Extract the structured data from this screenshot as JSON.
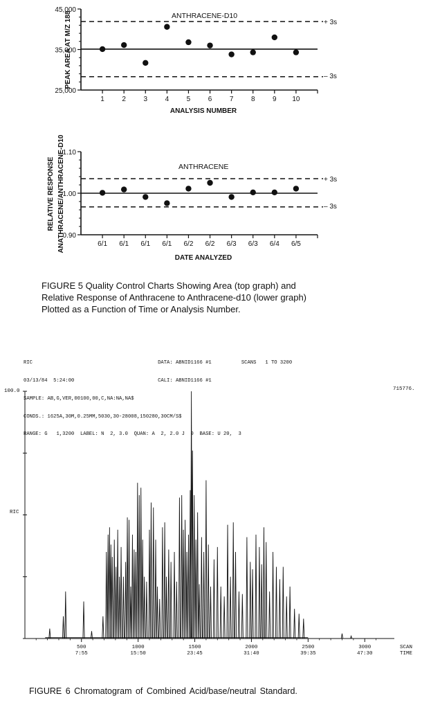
{
  "chart_data": [
    {
      "type": "scatter",
      "title": "ANTHRACENE-D10",
      "xlabel": "ANALYSIS NUMBER",
      "ylabel": "PEAK AREA AT M/Z 188",
      "ylim": [
        25000,
        45000
      ],
      "yticks": [
        "25,000",
        "35,000",
        "45,000"
      ],
      "x": [
        1,
        2,
        3,
        4,
        5,
        6,
        7,
        8,
        9,
        10
      ],
      "xticks": [
        "1",
        "2",
        "3",
        "4",
        "5",
        "6",
        "7",
        "8",
        "9",
        "10"
      ],
      "y": [
        35100,
        36100,
        31700,
        40600,
        36800,
        36000,
        33800,
        34300,
        38000,
        34300
      ],
      "center_line": 35100,
      "upper_limit": 41900,
      "lower_limit": 28300,
      "upper_label": "+ 3s",
      "lower_label": "– 3s"
    },
    {
      "type": "scatter",
      "title": "ANTHRACENE",
      "xlabel": "DATE ANALYZED",
      "ylabel_line1": "RELATIVE RESPONSE",
      "ylabel_line2": "ANATHRACENE/ANTHRACENE-D10",
      "ylim": [
        0.9,
        1.1
      ],
      "yticks": [
        "0.90",
        "1.00",
        "1.10"
      ],
      "categories": [
        "6/1",
        "6/1",
        "6/1",
        "6/1",
        "6/2",
        "6/2",
        "6/3",
        "6/3",
        "6/4",
        "6/5"
      ],
      "y": [
        1.001,
        1.009,
        0.991,
        0.976,
        1.011,
        1.025,
        0.991,
        1.002,
        1.002,
        1.011
      ],
      "center_line": 1.0,
      "upper_limit": 1.035,
      "lower_limit": 0.967,
      "upper_label": "+ 3s",
      "lower_label": "– 3s"
    },
    {
      "type": "line",
      "title": "RIC",
      "ylabel": "RIC",
      "ytop_label": "100.0",
      "max_label": "715776.",
      "xlim": [
        1,
        3200
      ],
      "xticks_scan": [
        "500",
        "1000",
        "1500",
        "2000",
        "2500",
        "3000"
      ],
      "xticks_time": [
        "7:55",
        "15:50",
        "23:45",
        "31:40",
        "39:35",
        "47:30"
      ],
      "xaxis_label_1": "SCAN",
      "xaxis_label_2": "TIME",
      "peaks": [
        [
          220,
          4
        ],
        [
          340,
          9
        ],
        [
          360,
          19
        ],
        [
          520,
          15
        ],
        [
          590,
          3
        ],
        [
          690,
          9
        ],
        [
          720,
          35
        ],
        [
          735,
          42
        ],
        [
          748,
          45
        ],
        [
          760,
          38
        ],
        [
          772,
          33
        ],
        [
          790,
          40
        ],
        [
          805,
          29
        ],
        [
          820,
          44
        ],
        [
          835,
          25
        ],
        [
          850,
          37
        ],
        [
          870,
          25
        ],
        [
          890,
          31
        ],
        [
          905,
          49
        ],
        [
          920,
          48
        ],
        [
          935,
          21
        ],
        [
          950,
          42
        ],
        [
          965,
          36
        ],
        [
          980,
          35
        ],
        [
          995,
          63
        ],
        [
          1010,
          58
        ],
        [
          1025,
          61
        ],
        [
          1040,
          40
        ],
        [
          1055,
          25
        ],
        [
          1075,
          23
        ],
        [
          1100,
          44
        ],
        [
          1115,
          55
        ],
        [
          1135,
          53
        ],
        [
          1155,
          40
        ],
        [
          1170,
          21
        ],
        [
          1190,
          16
        ],
        [
          1215,
          45
        ],
        [
          1235,
          47
        ],
        [
          1250,
          25
        ],
        [
          1270,
          36
        ],
        [
          1290,
          31
        ],
        [
          1320,
          35
        ],
        [
          1340,
          23
        ],
        [
          1365,
          57
        ],
        [
          1385,
          58
        ],
        [
          1400,
          44
        ],
        [
          1415,
          48
        ],
        [
          1430,
          35
        ],
        [
          1445,
          42
        ],
        [
          1460,
          60
        ],
        [
          1470,
          100
        ],
        [
          1480,
          76
        ],
        [
          1495,
          58
        ],
        [
          1510,
          40
        ],
        [
          1525,
          51
        ],
        [
          1540,
          22
        ],
        [
          1560,
          41
        ],
        [
          1580,
          35
        ],
        [
          1600,
          64
        ],
        [
          1620,
          38
        ],
        [
          1640,
          21
        ],
        [
          1670,
          32
        ],
        [
          1700,
          37
        ],
        [
          1730,
          21
        ],
        [
          1760,
          17
        ],
        [
          1790,
          46
        ],
        [
          1815,
          25
        ],
        [
          1840,
          47
        ],
        [
          1860,
          35
        ],
        [
          1890,
          19
        ],
        [
          1920,
          18
        ],
        [
          1960,
          41
        ],
        [
          1990,
          31
        ],
        [
          2010,
          28
        ],
        [
          2040,
          42
        ],
        [
          2070,
          37
        ],
        [
          2090,
          30
        ],
        [
          2110,
          45
        ],
        [
          2130,
          39
        ],
        [
          2160,
          19
        ],
        [
          2190,
          35
        ],
        [
          2220,
          29
        ],
        [
          2250,
          24
        ],
        [
          2280,
          29
        ],
        [
          2310,
          17
        ],
        [
          2340,
          21
        ],
        [
          2380,
          12
        ],
        [
          2420,
          10
        ],
        [
          2460,
          8
        ],
        [
          2800,
          2
        ],
        [
          2880,
          1
        ]
      ]
    }
  ],
  "figure5": {
    "caption_lines": [
      "FIGURE 5   Quality Control Charts Showing Area (top graph) and",
      "Relative Response of Anthracene to Anthracene-d10 (lower graph)",
      "Plotted as a Function of Time or Analysis Number."
    ]
  },
  "figure6": {
    "header_lines": [
      "RIC                                          DATA: ABNID1166 #1          SCANS   1 TO 3200",
      "03/13/84  5:24:00                            CALI: ABNID1166 #1",
      "SAMPLE: AB,G,VER,00100,00,C,NA:NA,NA$",
      "CONDS.: 1625A,30M,0.25MM,5030,30-28008,150280,30CM/S$",
      "RANGE: G   1,3200  LABEL: N  2, 3.0  QUAN: A  2, 2.0 J  0  BASE: U 20,  3"
    ],
    "caption": "FIGURE 6  Chromatogram of Combined Acid/base/neutral Standard."
  }
}
